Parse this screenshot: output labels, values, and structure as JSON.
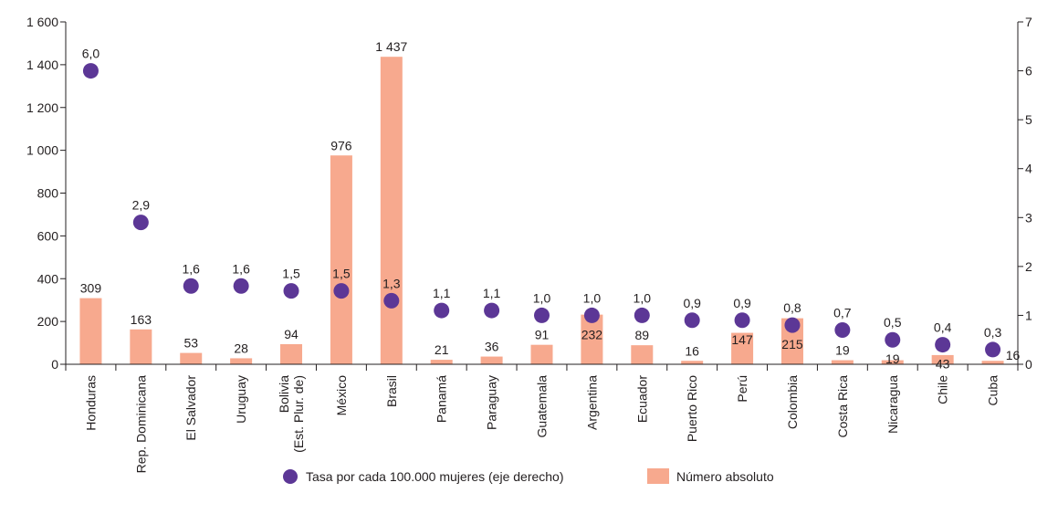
{
  "chart_data": {
    "type": "bar",
    "categories": [
      "Honduras",
      "Rep. Dominicana",
      "El Salvador",
      "Uruguay",
      "Bolivia\n(Est. Plur. de)",
      "México",
      "Brasil",
      "Panamá",
      "Paraguay",
      "Guatemala",
      "Argentina",
      "Ecuador",
      "Puerto Rico",
      "Perú",
      "Colombia",
      "Costa Rica",
      "Nicaragua",
      "Chile",
      "Cuba"
    ],
    "series": [
      {
        "name": "Número absoluto",
        "type": "bar",
        "axis": "left",
        "color": "#f7a98e",
        "values": [
          309,
          163,
          53,
          28,
          94,
          976,
          1437,
          21,
          36,
          91,
          232,
          89,
          16,
          147,
          215,
          19,
          19,
          43,
          16
        ],
        "labels": [
          "309",
          "163",
          "53",
          "28",
          "94",
          "976",
          "1 437",
          "21",
          "36",
          "91",
          "232",
          "89",
          "16",
          "147",
          "215",
          "19",
          "19",
          "43",
          "16"
        ]
      },
      {
        "name": "Tasa por cada 100.000 mujeres (eje derecho)",
        "type": "scatter",
        "axis": "right",
        "color": "#5c3796",
        "values": [
          6.0,
          2.9,
          1.6,
          1.6,
          1.5,
          1.5,
          1.3,
          1.1,
          1.1,
          1.0,
          1.0,
          1.0,
          0.9,
          0.9,
          0.8,
          0.7,
          0.5,
          0.4,
          0.3
        ],
        "labels": [
          "6,0",
          "2,9",
          "1,6",
          "1,6",
          "1,5",
          "1,5",
          "1,3",
          "1,1",
          "1,1",
          "1,0",
          "1,0",
          "1,0",
          "0,9",
          "0,9",
          "0,8",
          "0,7",
          "0,5",
          "0,4",
          "0,3"
        ]
      }
    ],
    "y_left": {
      "lim": [
        0,
        1600
      ],
      "ticks": [
        0,
        200,
        400,
        600,
        800,
        1000,
        1200,
        1400,
        1600
      ],
      "tick_labels": [
        "0",
        "200",
        "400",
        "600",
        "800",
        "1 000",
        "1 200",
        "1 400",
        "1 600"
      ]
    },
    "y_right": {
      "lim": [
        0,
        7
      ],
      "ticks": [
        0,
        1,
        2,
        3,
        4,
        5,
        6,
        7
      ],
      "tick_labels": [
        "0",
        "1",
        "2",
        "3",
        "4",
        "5",
        "6",
        "7"
      ]
    },
    "grid": false,
    "legend_position": "bottom",
    "legend": [
      {
        "label": "Tasa por cada 100.000 mujeres (eje derecho)",
        "marker": "circle",
        "color": "#5c3796"
      },
      {
        "label": "Número absoluto",
        "marker": "square",
        "color": "#f7a98e"
      }
    ]
  }
}
